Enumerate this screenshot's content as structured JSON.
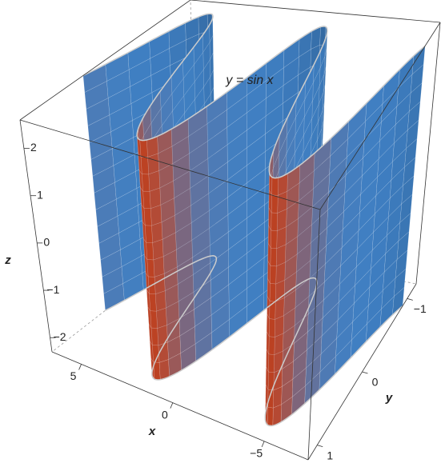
{
  "chart_data": {
    "type": "surface3d",
    "annotation": "y = sin x",
    "x_label": "x",
    "y_label": "y",
    "z_label": "z",
    "xlim": [
      -7.4,
      6.6
    ],
    "ylim": [
      -1.2,
      1.2
    ],
    "zlim": [
      -2.3,
      2.6
    ],
    "xticks": [
      5,
      0,
      {
        "value": -5,
        "label": "−5"
      }
    ],
    "yticks": [
      {
        "value": -1,
        "label": "−1"
      },
      0,
      1
    ],
    "zticks": [
      {
        "value": -2,
        "label": "−2"
      },
      {
        "value": -1,
        "label": "−1"
      },
      0,
      1,
      2
    ]
  }
}
